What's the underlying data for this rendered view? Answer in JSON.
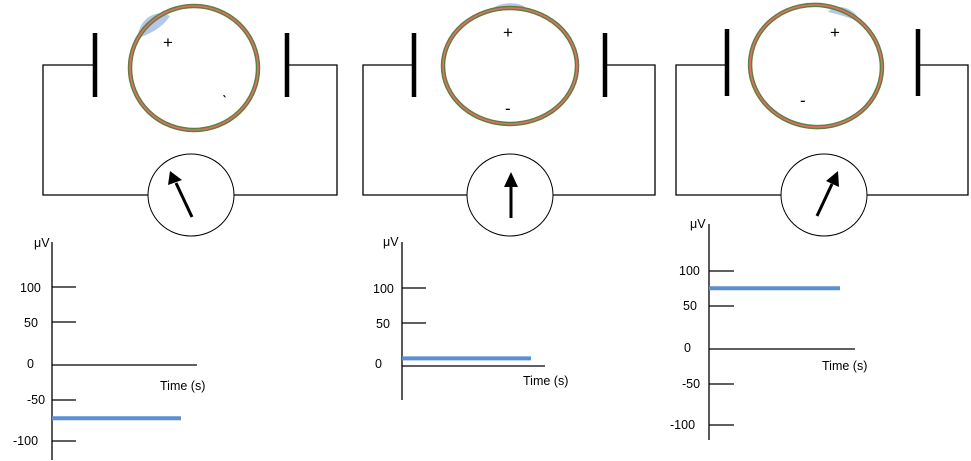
{
  "colors": {
    "cell_outer": "#5f7f3a",
    "cell_inner": "#e0706f",
    "blob": "#b4c7e7",
    "signal": "#5b8fcf"
  },
  "panels": [
    {
      "signs": {
        "plus": "+",
        "minus": "ˎ"
      },
      "graph": {
        "unit": "μV",
        "ticks": [
          "100",
          "50",
          "0",
          "-50",
          "-100"
        ],
        "time_label": "Time (s)",
        "signal_value": -70
      }
    },
    {
      "signs": {
        "plus": "+",
        "minus": "-"
      },
      "graph": {
        "unit": "μV",
        "ticks": [
          "100",
          "50",
          "0"
        ],
        "time_label": "Time (s)",
        "signal_value": 10
      }
    },
    {
      "signs": {
        "plus": "+",
        "minus": "-"
      },
      "graph": {
        "unit": "μV",
        "ticks": [
          "100",
          "50",
          "0",
          "-50",
          "-100"
        ],
        "time_label": "Time (s)",
        "signal_value": 80
      }
    }
  ]
}
